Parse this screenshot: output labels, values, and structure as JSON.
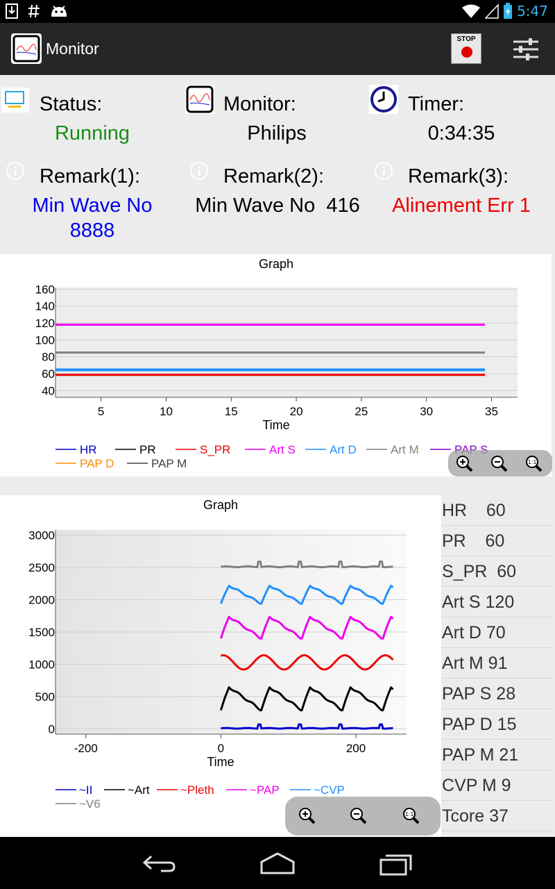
{
  "status_bar": {
    "time": "5:47"
  },
  "app": {
    "title": "Monitor",
    "stop_label": "STOP"
  },
  "info": {
    "status_label": "Status:",
    "status_value": "Running",
    "monitor_label": "Monitor:",
    "monitor_value": "Philips",
    "timer_label": "Timer:",
    "timer_value": "0:34:35",
    "remark1_label": "Remark(1):",
    "remark1_value_line1": "Min Wave No",
    "remark1_value_line2": "8888",
    "remark2_label": "Remark(2):",
    "remark2_value": "Min Wave No  416",
    "remark3_label": "Remark(3):",
    "remark3_value": "Alinement Err 1",
    "colors": {
      "running": "#1a8c1a",
      "remark1": "#0000ee",
      "remark2": "#000000",
      "remark3": "#ee0000"
    }
  },
  "graph1": {
    "title": "Graph",
    "xlabel": "Time",
    "x_ticks": [
      "5",
      "10",
      "15",
      "20",
      "25",
      "30",
      "35"
    ],
    "y_ticks": [
      "40",
      "60",
      "80",
      "100",
      "120",
      "140",
      "160"
    ],
    "legend": [
      {
        "name": "HR",
        "color": "#0000cc"
      },
      {
        "name": "PR",
        "color": "#000000"
      },
      {
        "name": "S_PR",
        "color": "#ee0000"
      },
      {
        "name": "Art S",
        "color": "#ee00ee"
      },
      {
        "name": "Art D",
        "color": "#1e90ff"
      },
      {
        "name": "Art M",
        "color": "#808080"
      },
      {
        "name": "PAP S",
        "color": "#8800cc"
      },
      {
        "name": "PAP D",
        "color": "#ff8800"
      },
      {
        "name": "PAP M",
        "color": "#404040"
      }
    ]
  },
  "graph2": {
    "title": "Graph",
    "xlabel": "Time",
    "x_ticks": [
      "-200",
      "0",
      "200"
    ],
    "y_ticks": [
      "0",
      "500",
      "1000",
      "1500",
      "2000",
      "2500",
      "3000"
    ],
    "legend": [
      {
        "name": "~II",
        "color": "#0000cc"
      },
      {
        "name": "~Art",
        "color": "#000000"
      },
      {
        "name": "~Pleth",
        "color": "#ee0000"
      },
      {
        "name": "~PAP",
        "color": "#ee00ee"
      },
      {
        "name": "~CVP",
        "color": "#1e90ff"
      },
      {
        "name": "~V6",
        "color": "#808080"
      }
    ]
  },
  "chart_data": [
    {
      "type": "line",
      "title": "Graph",
      "xlabel": "Time",
      "xlim": [
        1.5,
        37
      ],
      "ylim": [
        32,
        162
      ],
      "x": [
        1.5,
        34.5
      ],
      "series": [
        {
          "name": "Art S",
          "color": "#ee00ee",
          "values": [
            118,
            118
          ]
        },
        {
          "name": "Art M",
          "color": "#808080",
          "values": [
            85,
            85
          ]
        },
        {
          "name": "Art D",
          "color": "#1e90ff",
          "values": [
            64.5,
            64.5
          ]
        },
        {
          "name": "S_PR",
          "color": "#ee0000",
          "values": [
            58.5,
            58.5
          ]
        }
      ],
      "grid": true,
      "legend": "bottom"
    },
    {
      "type": "line",
      "title": "Graph",
      "xlabel": "Time",
      "xlim": [
        -245,
        275
      ],
      "ylim": [
        -80,
        3080
      ],
      "series": [
        {
          "name": "~V6",
          "color": "#808080",
          "baseline": 2510,
          "amplitude": 80,
          "shape": "spike"
        },
        {
          "name": "~CVP",
          "color": "#1e90ff",
          "baseline": 2080,
          "amplitude": 140,
          "shape": "wave"
        },
        {
          "name": "~PAP",
          "color": "#ee00ee",
          "baseline": 1570,
          "amplitude": 170,
          "shape": "wave"
        },
        {
          "name": "~Pleth",
          "color": "#ee0000",
          "baseline": 1030,
          "amplitude": 110,
          "shape": "sine"
        },
        {
          "name": "~Art",
          "color": "#000000",
          "baseline": 470,
          "amplitude": 180,
          "shape": "wave"
        },
        {
          "name": "~II",
          "color": "#0000cc",
          "baseline": 10,
          "amplitude": 60,
          "shape": "spike"
        }
      ],
      "x_range": [
        0,
        255
      ],
      "grid": true,
      "legend": "bottom"
    }
  ],
  "side_values": [
    "HR    60",
    "PR    60",
    "S_PR  60",
    "Art S 120",
    "Art D 70",
    "Art M 91",
    "PAP S 28",
    "PAP D 15",
    "PAP M 21",
    "CVP M 9",
    "Tcore 37"
  ]
}
